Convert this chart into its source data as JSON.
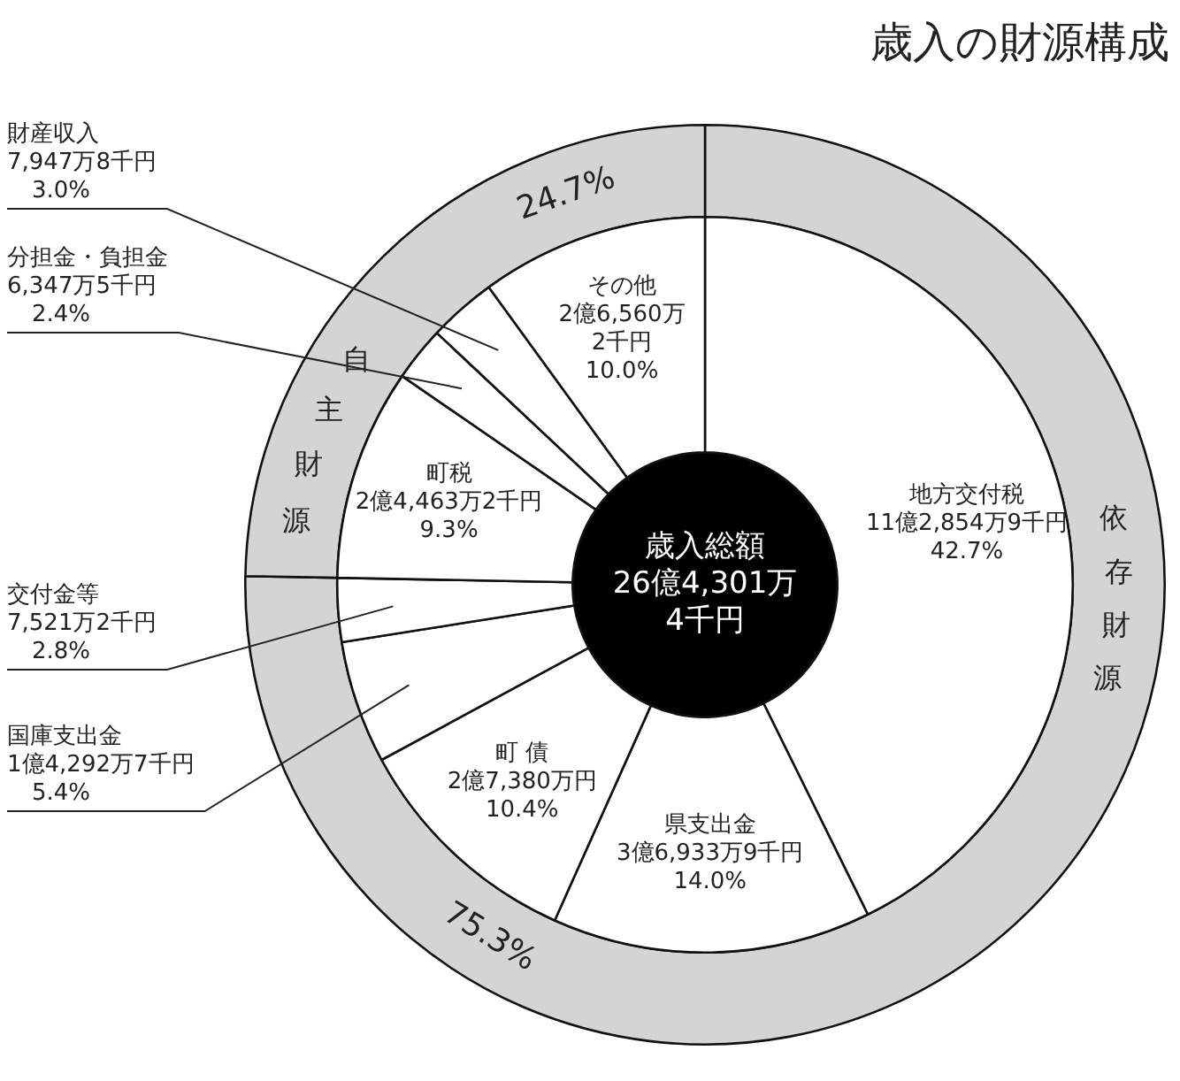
{
  "chart_data": [
    {
      "type": "donut",
      "title": "歳入の財源構成",
      "categories": [
        "地方交付税",
        "県支出金",
        "町 債",
        "国庫支出金",
        "交付金等",
        "町税",
        "分担金・負担金",
        "財産収入",
        "その他"
      ],
      "values": [
        42.7,
        14.0,
        10.4,
        5.4,
        2.8,
        9.3,
        2.4,
        3.0,
        10.0
      ],
      "colors": [
        "#ffffff",
        "#ffffff",
        "#ffffff",
        "#ffffff",
        "#ffffff",
        "#ffffff",
        "#ffffff",
        "#ffffff",
        "#ffffff"
      ],
      "value_labels": [
        "11億2,854万9千円\n42.7%",
        "3億6,933万9千円\n14.0%",
        "2億7,380万円\n10.4%",
        "1億4,292万7千円\n5.4%",
        "7,521万2千円\n2.8%",
        "2億4,463万2千円\n9.3%",
        "6,347万5千円\n2.4%",
        "7,947万8千円\n3.0%",
        "2億6,560万\n2千円\n10.0%"
      ],
      "annotations": [
        "歳入総額\n26億4,301万\n4千円"
      ],
      "legend": false
    },
    {
      "type": "donut",
      "categories": [
        "依存財源",
        "自主財源"
      ],
      "values": [
        75.3,
        24.7
      ],
      "colors": [
        "#d4d4d4",
        "#d4d4d4"
      ],
      "value_labels": [
        "75.3%",
        "24.7%"
      ],
      "legend": false
    }
  ]
}
